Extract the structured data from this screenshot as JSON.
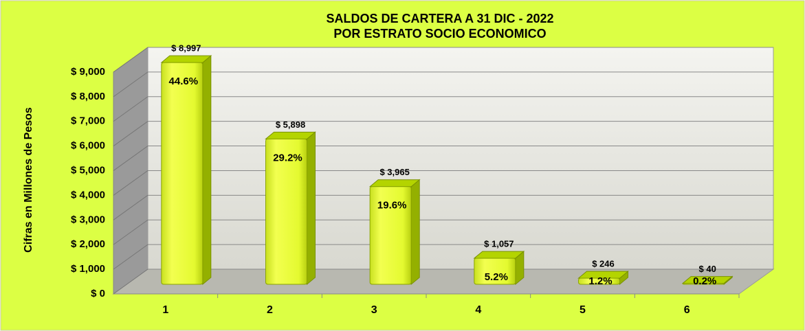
{
  "chart_data": {
    "type": "bar",
    "title": [
      "SALDOS DE CARTERA A 31 DIC - 2022",
      "POR ESTRATO SOCIO ECONOMICO"
    ],
    "y_label": "Cifras en Millones de Pesos",
    "categories": [
      "1",
      "2",
      "3",
      "4",
      "5",
      "6"
    ],
    "values": [
      8997,
      5898,
      3965,
      1057,
      246,
      40
    ],
    "value_labels": [
      "$ 8,997",
      "$ 5,898",
      "$ 3,965",
      "$ 1,057",
      "$ 246",
      "$ 40"
    ],
    "shares": [
      44.6,
      29.2,
      19.6,
      5.2,
      1.2,
      0.2
    ],
    "share_labels": [
      "44.6%",
      "29.2%",
      "19.6%",
      "5.2%",
      "1.2%",
      "0.2%"
    ],
    "color": "#e8ff3c",
    "ylim": [
      0,
      9000
    ],
    "yticks": [
      {
        "value": 0,
        "label": "$ 0"
      },
      {
        "value": 1000,
        "label": "$ 1,000"
      },
      {
        "value": 2000,
        "label": "$ 2,000"
      },
      {
        "value": 3000,
        "label": "$ 3,000"
      },
      {
        "value": 4000,
        "label": "$ 4,000"
      },
      {
        "value": 5000,
        "label": "$ 5,000"
      },
      {
        "value": 6000,
        "label": "$ 6,000"
      },
      {
        "value": 7000,
        "label": "$ 7,000"
      },
      {
        "value": 8000,
        "label": "$ 8,000"
      },
      {
        "value": 9000,
        "label": "$ 9,000"
      }
    ],
    "grid": true
  }
}
